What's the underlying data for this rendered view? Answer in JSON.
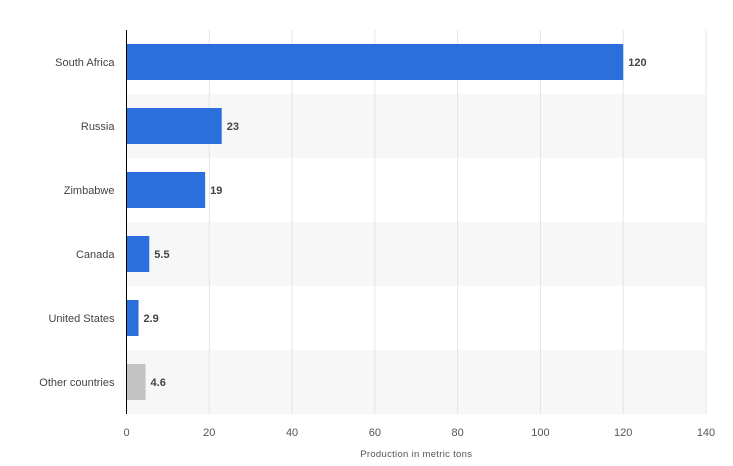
{
  "chart_data": {
    "type": "bar",
    "orientation": "horizontal",
    "categories": [
      "South Africa",
      "Russia",
      "Zimbabwe",
      "Canada",
      "United States",
      "Other countries"
    ],
    "values": [
      120,
      23,
      19,
      5.5,
      2.9,
      4.6
    ],
    "value_labels": [
      "120",
      "23",
      "19",
      "5.5",
      "2.9",
      "4.6"
    ],
    "xlabel": "Production in metric tons",
    "ylabel": "",
    "xlim": [
      0,
      140
    ],
    "xticks": [
      0,
      20,
      40,
      60,
      80,
      100,
      120,
      140
    ],
    "xtick_labels": [
      "0",
      "20",
      "40",
      "60",
      "80",
      "100",
      "120",
      "140"
    ],
    "grid": true,
    "legend": "none"
  },
  "colors": {
    "bar": "#2a6fdb",
    "other_bar": "#c2c2c2",
    "band": "#f7f7f7",
    "grid": "#e4e4e4",
    "axis": "#000000"
  }
}
